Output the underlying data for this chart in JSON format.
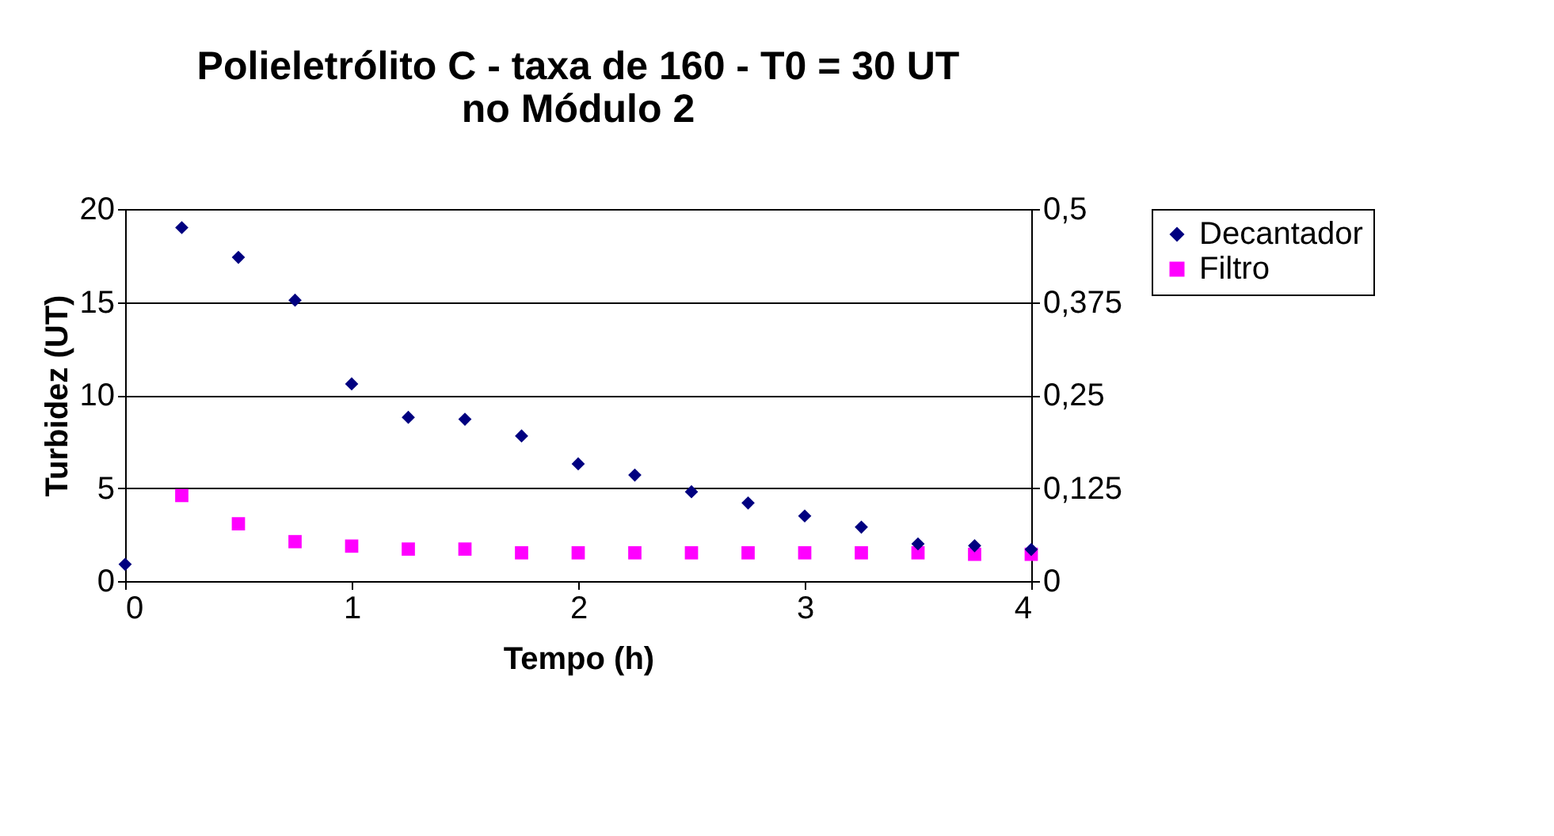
{
  "chart_data": {
    "type": "scatter",
    "title": "Polieletrólito C - taxa de 160 - T0 = 30 UT\nno Módulo 2",
    "xlabel": "Tempo (h)",
    "ylabel": "Turbidez (UT)",
    "xlim": [
      0,
      4
    ],
    "xticks": [
      0,
      1,
      2,
      3,
      4
    ],
    "ylim": [
      0,
      20
    ],
    "yticks": [
      0,
      5,
      10,
      15,
      20
    ],
    "y2lim": [
      0,
      0.5
    ],
    "y2ticks": [
      0,
      {
        "value": 0.125,
        "label": "0,125"
      },
      {
        "value": 0.25,
        "label": "0,25"
      },
      {
        "value": 0.375,
        "label": "0,375"
      },
      {
        "value": 0.5,
        "label": "0,5"
      }
    ],
    "grid": "y",
    "legend": "right",
    "series": [
      {
        "name": "Decantador",
        "color": "#000080",
        "marker": "diamond",
        "x": [
          0,
          0.25,
          0.5,
          0.75,
          1,
          1.25,
          1.5,
          1.75,
          2,
          2.25,
          2.5,
          2.75,
          3,
          3.25,
          3.5,
          3.75,
          4
        ],
        "values": [
          0.9,
          19.0,
          17.4,
          15.1,
          10.6,
          8.8,
          8.7,
          7.8,
          6.3,
          5.7,
          4.8,
          4.2,
          3.5,
          2.9,
          2.0,
          1.9,
          1.7
        ]
      },
      {
        "name": "Filtro",
        "color": "#ff00ff",
        "marker": "square",
        "axis": "y2",
        "x": [
          0.25,
          0.5,
          0.75,
          1,
          1.25,
          1.5,
          1.75,
          2,
          2.25,
          2.5,
          2.75,
          3,
          3.25,
          3.5,
          3.75,
          4
        ],
        "values": [
          0.115,
          0.077,
          0.053,
          0.047,
          0.043,
          0.043,
          0.038,
          0.038,
          0.038,
          0.038,
          0.038,
          0.038,
          0.038,
          0.038,
          0.036,
          0.036
        ]
      }
    ]
  }
}
